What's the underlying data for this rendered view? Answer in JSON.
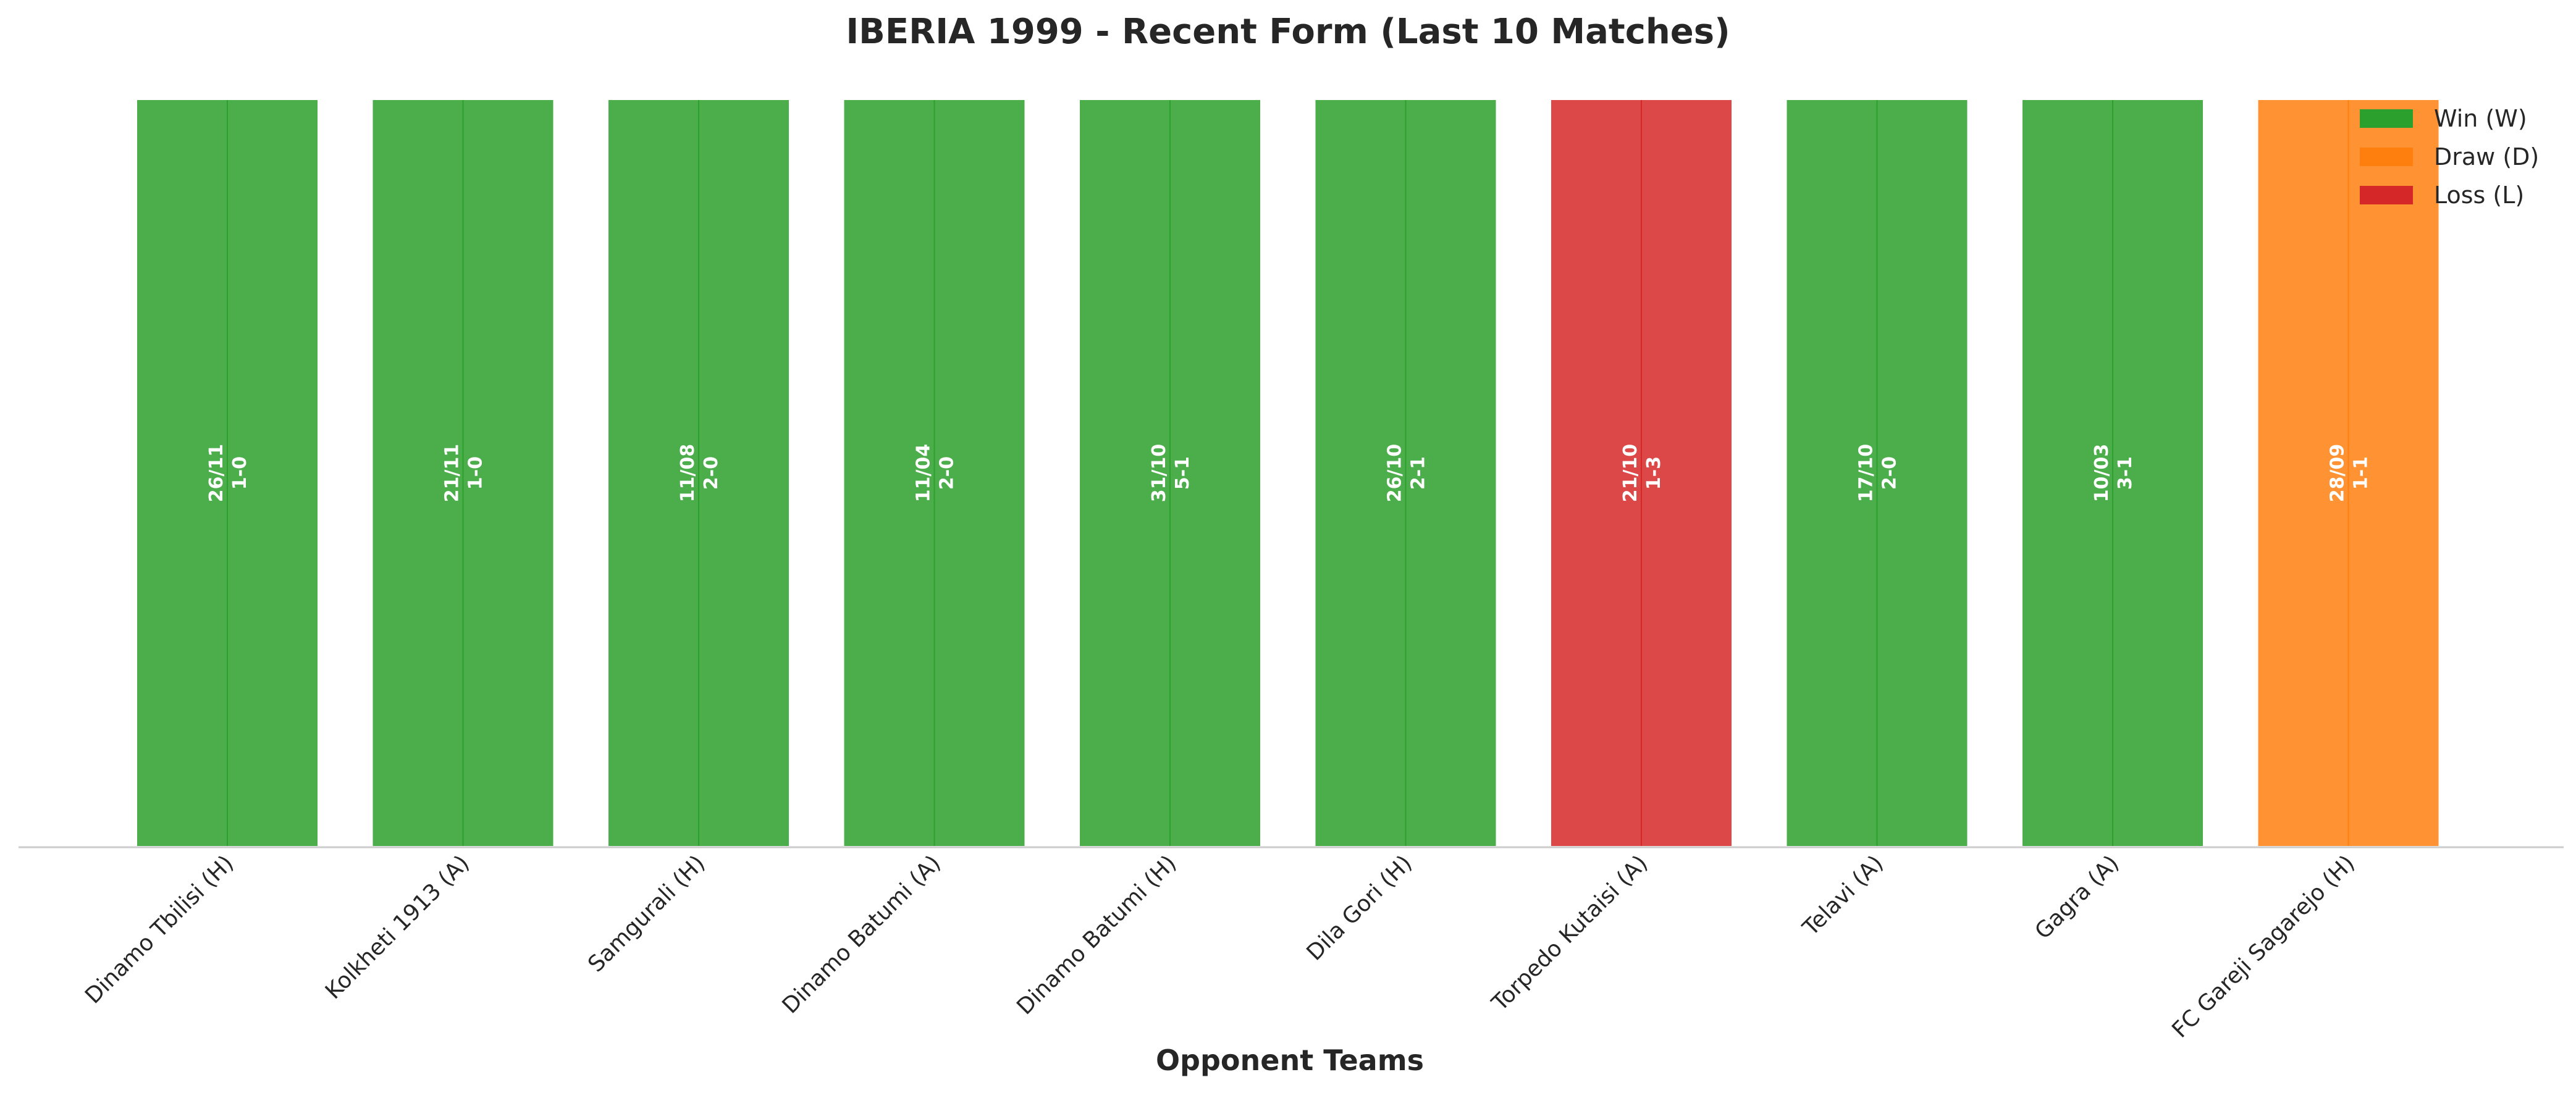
{
  "chart_data": {
    "type": "bar",
    "title": "IBERIA 1999 - Recent Form (Last 10 Matches)",
    "xlabel": "Opponent Teams",
    "ylabel": "",
    "ylim": [
      0,
      1
    ],
    "grid": false,
    "legend_position": "top-right",
    "legend": [
      {
        "key": "W",
        "label": "Win (W)",
        "color": "#2ca02c"
      },
      {
        "key": "D",
        "label": "Draw (D)",
        "color": "#ff7f0e"
      },
      {
        "key": "L",
        "label": "Loss (L)",
        "color": "#d62728"
      }
    ],
    "categories": [
      "Dinamo Tbilisi (H)",
      "Kolkheti 1913 (A)",
      "Samgurali (H)",
      "Dinamo Batumi (A)",
      "Dinamo Batumi (H)",
      "Dila Gori (H)",
      "Torpedo Kutaisi (A)",
      "Telavi (A)",
      "Gagra (A)",
      "FC Gareji Sagarejo (H)"
    ],
    "values": [
      1,
      1,
      1,
      1,
      1,
      1,
      1,
      1,
      1,
      1
    ],
    "results": [
      "W",
      "W",
      "W",
      "W",
      "W",
      "W",
      "L",
      "W",
      "W",
      "D"
    ],
    "dates": [
      "26/11",
      "21/11",
      "11/08",
      "11/04",
      "31/10",
      "26/10",
      "21/10",
      "17/10",
      "10/03",
      "28/09"
    ],
    "scores": [
      "1-0",
      "1-0",
      "2-0",
      "2-0",
      "5-1",
      "2-1",
      "1-3",
      "2-0",
      "3-1",
      "1-1"
    ]
  }
}
